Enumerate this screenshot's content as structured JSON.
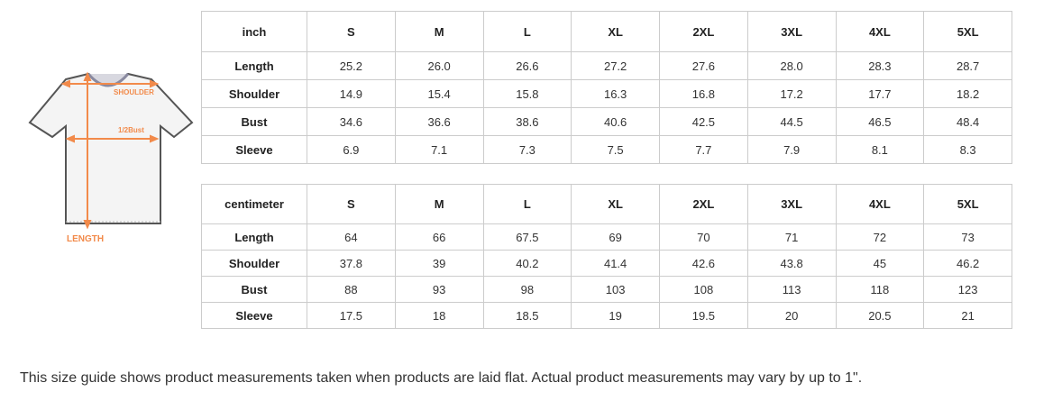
{
  "diagram": {
    "labels": {
      "shoulder": "SHOULDER",
      "bust": "1/2Bust",
      "length": "LENGTH"
    },
    "accent_color": "#f28a4a"
  },
  "sizes": [
    "S",
    "M",
    "L",
    "XL",
    "2XL",
    "3XL",
    "4XL",
    "5XL"
  ],
  "inch_table": {
    "unit": "inch",
    "rows": [
      {
        "label": "Length",
        "values": [
          "25.2",
          "26.0",
          "26.6",
          "27.2",
          "27.6",
          "28.0",
          "28.3",
          "28.7"
        ]
      },
      {
        "label": "Shoulder",
        "values": [
          "14.9",
          "15.4",
          "15.8",
          "16.3",
          "16.8",
          "17.2",
          "17.7",
          "18.2"
        ]
      },
      {
        "label": "Bust",
        "values": [
          "34.6",
          "36.6",
          "38.6",
          "40.6",
          "42.5",
          "44.5",
          "46.5",
          "48.4"
        ]
      },
      {
        "label": "Sleeve",
        "values": [
          "6.9",
          "7.1",
          "7.3",
          "7.5",
          "7.7",
          "7.9",
          "8.1",
          "8.3"
        ]
      }
    ]
  },
  "cm_table": {
    "unit": "centimeter",
    "rows": [
      {
        "label": "Length",
        "values": [
          "64",
          "66",
          "67.5",
          "69",
          "70",
          "71",
          "72",
          "73"
        ]
      },
      {
        "label": "Shoulder",
        "values": [
          "37.8",
          "39",
          "40.2",
          "41.4",
          "42.6",
          "43.8",
          "45",
          "46.2"
        ]
      },
      {
        "label": "Bust",
        "values": [
          "88",
          "93",
          "98",
          "103",
          "108",
          "113",
          "118",
          "123"
        ]
      },
      {
        "label": "Sleeve",
        "values": [
          "17.5",
          "18",
          "18.5",
          "19",
          "19.5",
          "20",
          "20.5",
          "21"
        ]
      }
    ]
  },
  "note": "This size guide shows product measurements taken when products are laid flat. Actual product measurements may vary by up to 1\"."
}
